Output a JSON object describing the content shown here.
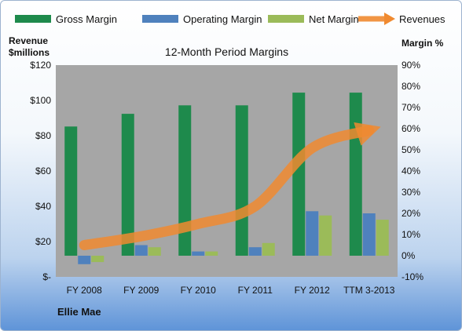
{
  "chart_data": {
    "type": "bar",
    "title": "12-Month Period Margins",
    "categories": [
      "FY 2008",
      "FY 2009",
      "FY 2010",
      "FY 2011",
      "FY 2012",
      "TTM 3-2013"
    ],
    "series": [
      {
        "name": "Gross Margin",
        "type": "bar",
        "axis": "right",
        "color": "#1e8a4c",
        "values": [
          61,
          67,
          71,
          71,
          77,
          77
        ]
      },
      {
        "name": "Operating Margin",
        "type": "bar",
        "axis": "right",
        "color": "#4f81bd",
        "values": [
          -4,
          5,
          2,
          4,
          21,
          20
        ]
      },
      {
        "name": "Net Margin",
        "type": "bar",
        "axis": "right",
        "color": "#9bbb59",
        "values": [
          -3,
          4,
          2,
          6,
          19,
          17
        ]
      },
      {
        "name": "Revenues",
        "type": "line",
        "axis": "left",
        "color": "#f08a30",
        "values": [
          18,
          23,
          30,
          40,
          73,
          83
        ]
      }
    ],
    "left_axis": {
      "title": "Revenue $millions",
      "ylim": [
        0,
        120
      ],
      "ticks": [
        0,
        20,
        40,
        60,
        80,
        100,
        120
      ],
      "tick_labels": [
        "$-",
        "$20",
        "$40",
        "$60",
        "$80",
        "$100",
        "$120"
      ]
    },
    "right_axis": {
      "title": "Margin %",
      "ylim": [
        -10,
        90
      ],
      "ticks": [
        -10,
        0,
        10,
        20,
        30,
        40,
        50,
        60,
        70,
        80,
        90
      ],
      "tick_labels": [
        "-10%",
        "0%",
        "10%",
        "20%",
        "30%",
        "40%",
        "50%",
        "60%",
        "70%",
        "80%",
        "90%"
      ]
    },
    "legend_position": "top",
    "plot_background": "#a6a6a6",
    "grid": false,
    "footer": "Ellie Mae"
  }
}
